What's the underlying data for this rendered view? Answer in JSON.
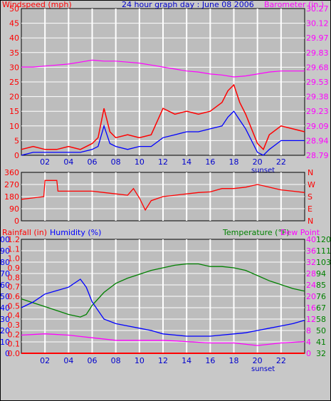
{
  "chart_data": [
    {
      "type": "line",
      "title": "24 hour graph day : June 08 2006",
      "ylabel_left": "Windspeed (mph)",
      "ylabel_right": "Barometer (in.)",
      "y_left_ticks": [
        "50",
        "45",
        "40",
        "35",
        "30",
        "25",
        "20",
        "15",
        "10",
        "5",
        "0"
      ],
      "y_right_ticks": [
        "30.27",
        "30.12",
        "29.97",
        "29.83",
        "29.68",
        "29.53",
        "29.38",
        "29.23",
        "29.09",
        "28.94",
        "28.79"
      ],
      "ylim_left": [
        0,
        50
      ],
      "ylim_right": [
        28.79,
        30.27
      ],
      "x_ticks": [
        "02",
        "04",
        "06",
        "08",
        "10",
        "12",
        "14",
        "16",
        "18",
        "20",
        "22"
      ],
      "xlim": [
        0,
        24
      ],
      "sunset_label": "sunset",
      "grid": true,
      "colors": {
        "gust": "#ff0000",
        "average": "#0000ff",
        "barometer": "#ff00ff"
      },
      "series": [
        {
          "name": "Barometer (in.)",
          "x": [
            0,
            1,
            2,
            3,
            4,
            5,
            6,
            7,
            8,
            9,
            10,
            11,
            12,
            13,
            14,
            15,
            16,
            17,
            18,
            19,
            20,
            21,
            22,
            23,
            24
          ],
          "values": [
            29.68,
            29.68,
            29.69,
            29.7,
            29.71,
            29.73,
            29.75,
            29.74,
            29.74,
            29.73,
            29.72,
            29.7,
            29.68,
            29.66,
            29.64,
            29.63,
            29.61,
            29.6,
            29.58,
            29.59,
            29.61,
            29.63,
            29.64,
            29.64,
            29.64
          ]
        },
        {
          "x": [
            0,
            1,
            2,
            3,
            4,
            5,
            6,
            6.5,
            7,
            7.5,
            8,
            9,
            10,
            11,
            12,
            13,
            14,
            15,
            16,
            17,
            17.5,
            18,
            18.5,
            19,
            20,
            20.5,
            21,
            22,
            23,
            24
          ],
          "values": [
            2,
            3,
            2,
            2,
            3,
            2,
            4,
            6,
            16,
            8,
            6,
            7,
            6,
            7,
            16,
            14,
            15,
            14,
            15,
            18,
            22,
            24,
            18,
            14,
            4,
            2,
            7,
            10,
            9,
            8
          ]
        },
        {
          "x": [
            0,
            1,
            2,
            3,
            4,
            5,
            6,
            6.5,
            7,
            7.5,
            8,
            9,
            10,
            11,
            12,
            13,
            14,
            15,
            16,
            17,
            17.5,
            18,
            18.5,
            19,
            20,
            20.5,
            21,
            22,
            23,
            24
          ],
          "values": [
            0,
            1,
            1,
            1,
            1,
            1,
            2,
            3,
            10,
            4,
            3,
            2,
            3,
            3,
            6,
            7,
            8,
            8,
            9,
            10,
            13,
            15,
            12,
            9,
            1,
            0,
            2,
            5,
            5,
            5
          ]
        }
      ]
    },
    {
      "type": "line",
      "ylabel_left_ticks": [
        "360",
        "270",
        "180",
        "90",
        "0"
      ],
      "right_labels": [
        "N",
        "W",
        "S",
        "E",
        "N"
      ],
      "ylim": [
        0,
        360
      ],
      "xlim": [
        0,
        24
      ],
      "colors": {
        "direction": "#ff0000"
      },
      "series": [
        {
          "x": [
            0,
            1,
            1.9,
            2,
            3,
            3.1,
            4,
            5,
            6,
            7,
            8,
            9,
            9.5,
            10,
            10.5,
            11,
            12,
            13,
            14,
            15,
            16,
            17,
            18,
            19,
            20,
            21,
            22,
            23,
            24
          ],
          "values": [
            160,
            170,
            180,
            300,
            300,
            220,
            220,
            220,
            220,
            210,
            200,
            190,
            240,
            170,
            80,
            150,
            180,
            190,
            200,
            210,
            215,
            240,
            240,
            250,
            270,
            250,
            230,
            220,
            210
          ]
        }
      ]
    },
    {
      "type": "line",
      "ylabel_left": "Rainfall (in)",
      "ylabel_left2": "Humidity (%)",
      "ylabel_right": "Temperature (°F)",
      "ylabel_right2": "Dew Point",
      "humidity_ticks": [
        "100",
        "90",
        "80",
        "70",
        "60",
        "50",
        "40",
        "30",
        "20",
        "10",
        "0"
      ],
      "rain_ticks": [
        "1.2",
        "1.1",
        "1.0",
        "0.9",
        "0.8",
        "0.7",
        "0.6",
        "0.5",
        "0.4",
        "0.3",
        "0.2",
        "0.1",
        "0.0"
      ],
      "temp_c_ticks": [
        "40",
        "36",
        "32",
        "28",
        "24",
        "20",
        "16",
        "12",
        "8",
        "4",
        "0"
      ],
      "temp_f_ticks": [
        "120",
        "111",
        "103",
        "94",
        "85",
        "76",
        "67",
        "58",
        "50",
        "41",
        "32"
      ],
      "ylim_humidity": [
        0,
        100
      ],
      "ylim_temp_f": [
        32,
        120
      ],
      "x_ticks": [
        "02",
        "04",
        "06",
        "08",
        "10",
        "12",
        "14",
        "16",
        "18",
        "20",
        "22"
      ],
      "xlim": [
        0,
        24
      ],
      "sunset_label": "sunset",
      "grid": true,
      "colors": {
        "humidity": "#0000ff",
        "temperature": "#008000",
        "dew_point": "#ff00ff",
        "rain": "#ff0000"
      },
      "series": [
        {
          "name": "Humidity (%)",
          "x": [
            0,
            1,
            2,
            3,
            4,
            5,
            5.5,
            6,
            7,
            8,
            9,
            10,
            11,
            12,
            13,
            14,
            15,
            16,
            17,
            18,
            19,
            20,
            21,
            22,
            23,
            24
          ],
          "values": [
            40,
            45,
            52,
            55,
            58,
            65,
            58,
            45,
            30,
            26,
            24,
            22,
            20,
            17,
            16,
            15,
            15,
            15,
            16,
            17,
            18,
            20,
            22,
            24,
            26,
            29
          ]
        },
        {
          "name": "Temperature (°F)",
          "x": [
            0,
            1,
            2,
            3,
            4,
            5,
            5.5,
            6,
            7,
            8,
            9,
            10,
            11,
            12,
            13,
            14,
            15,
            16,
            17,
            18,
            19,
            20,
            21,
            22,
            23,
            24
          ],
          "values": [
            74,
            71,
            68,
            65,
            62,
            60,
            62,
            69,
            79,
            86,
            90,
            93,
            96,
            98,
            100,
            101,
            101,
            99,
            99,
            98,
            96,
            92,
            88,
            85,
            82,
            80
          ]
        },
        {
          "name": "Dew Point",
          "x": [
            0,
            2,
            4,
            5,
            6,
            8,
            10,
            12,
            14,
            16,
            18,
            20,
            22,
            24
          ],
          "values": [
            46,
            47,
            46,
            45,
            44,
            42,
            42,
            42,
            41,
            40,
            40,
            38,
            40,
            41
          ]
        },
        {
          "x": [
            0,
            24
          ],
          "values": [
            0,
            0
          ]
        }
      ]
    }
  ]
}
